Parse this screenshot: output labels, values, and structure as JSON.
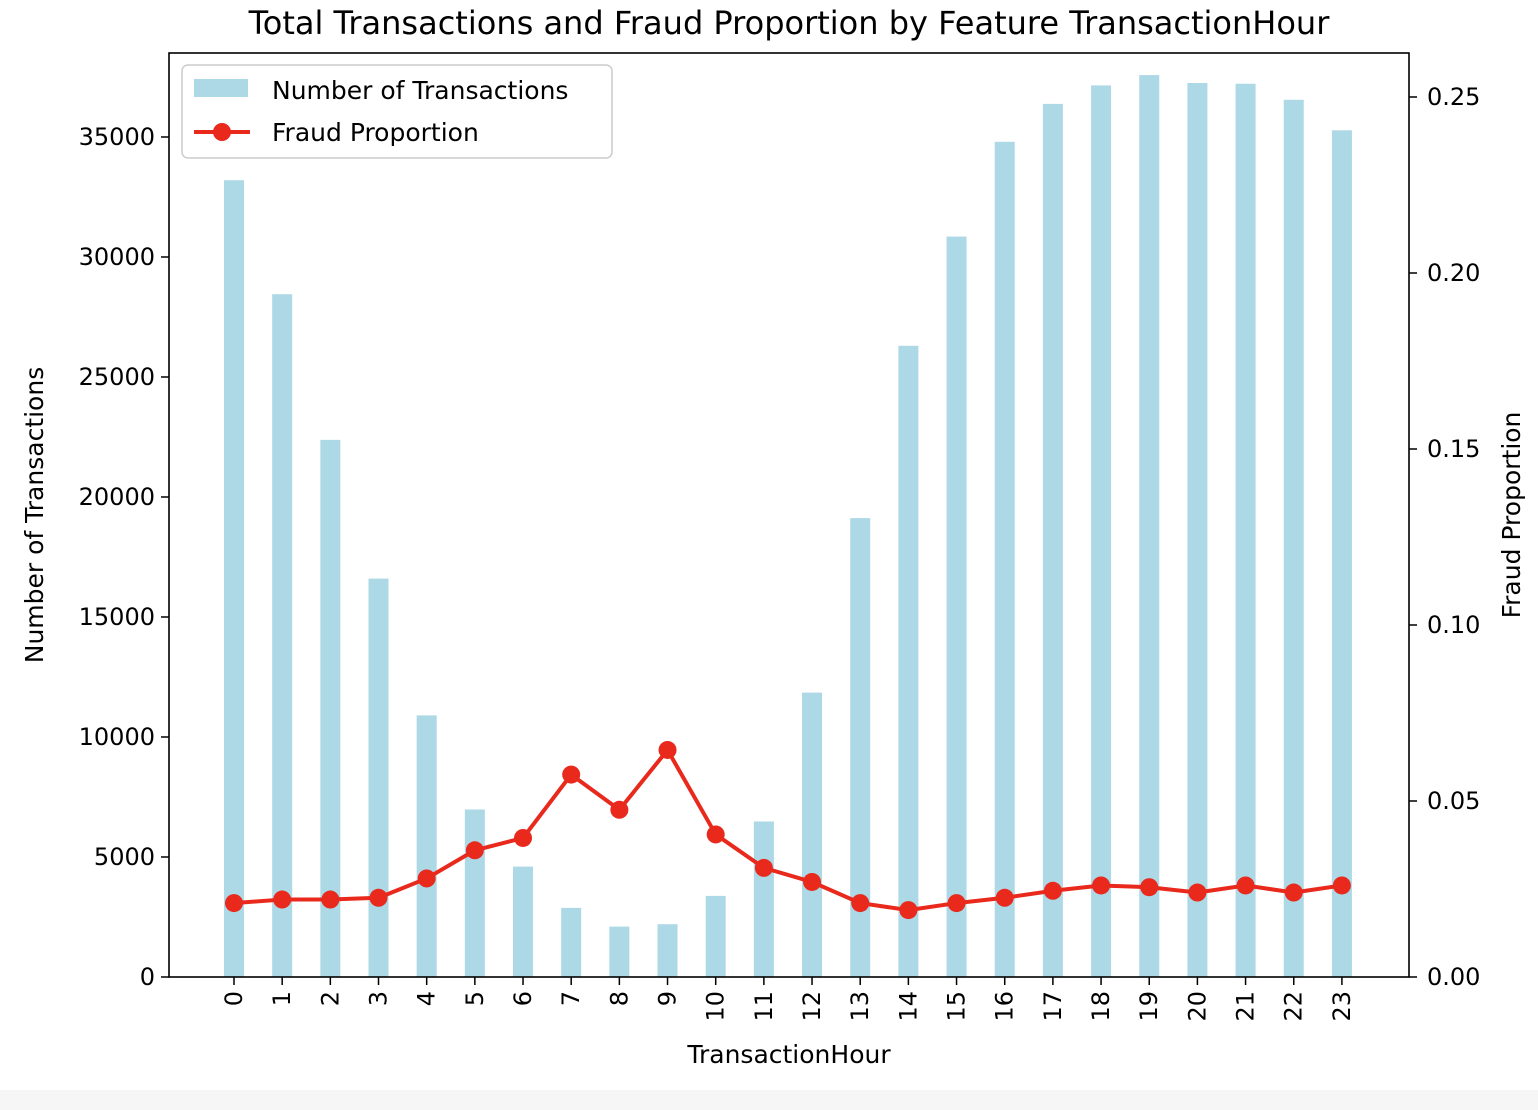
{
  "chart_data": {
    "type": "bar",
    "title": "Total Transactions and Fraud Proportion by Feature TransactionHour",
    "xlabel": "TransactionHour",
    "ylabel": "Number of Transactions",
    "y2label": "Fraud Proportion",
    "categories": [
      "0",
      "1",
      "2",
      "3",
      "4",
      "5",
      "6",
      "7",
      "8",
      "9",
      "10",
      "11",
      "12",
      "13",
      "14",
      "15",
      "16",
      "17",
      "18",
      "19",
      "20",
      "21",
      "22",
      "23"
    ],
    "series": [
      {
        "name": "Number of Transactions",
        "type": "bar",
        "axis": "left",
        "color": "#add8e6",
        "values": [
          33200,
          28450,
          22380,
          16600,
          10900,
          6980,
          4600,
          2880,
          2100,
          2200,
          3380,
          6480,
          11850,
          19120,
          26300,
          30850,
          34800,
          36380,
          37150,
          37580,
          37250,
          37220,
          36550,
          35280
        ]
      },
      {
        "name": "Fraud Proportion",
        "type": "line",
        "axis": "right",
        "color": "#e8291c",
        "values": [
          0.021,
          0.022,
          0.022,
          0.0225,
          0.028,
          0.036,
          0.0395,
          0.0575,
          0.0475,
          0.0645,
          0.0405,
          0.031,
          0.027,
          0.021,
          0.019,
          0.021,
          0.0225,
          0.0245,
          0.026,
          0.0255,
          0.024,
          0.026,
          0.024,
          0.026
        ]
      }
    ],
    "ylim": [
      0,
      38500
    ],
    "y2lim": [
      0,
      0.2625
    ],
    "yticks": [
      0,
      5000,
      10000,
      15000,
      20000,
      25000,
      30000,
      35000
    ],
    "y2ticks": [
      "0.00",
      "0.05",
      "0.10",
      "0.15",
      "0.20",
      "0.25"
    ],
    "legend_position": "top-left",
    "grid": false
  }
}
